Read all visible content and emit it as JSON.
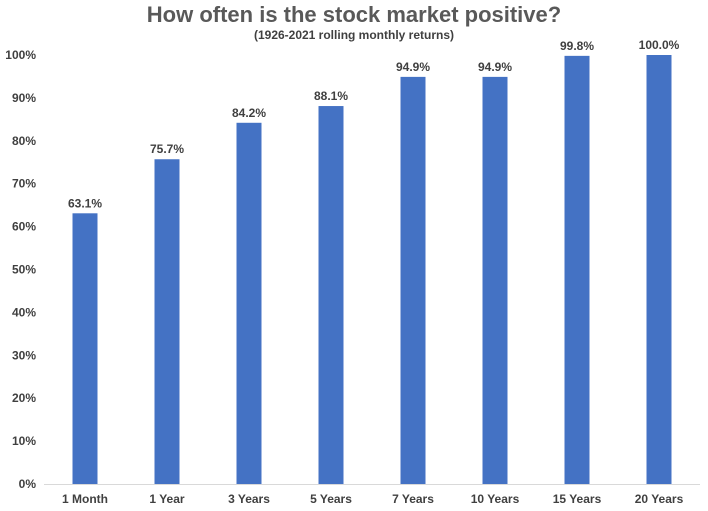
{
  "chart_data": {
    "type": "bar",
    "title": "How often is the stock market positive?",
    "subtitle": "(1926-2021 rolling monthly returns)",
    "xlabel": "",
    "ylabel": "",
    "ylim": [
      0,
      100
    ],
    "yticks": [
      "0%",
      "10%",
      "20%",
      "30%",
      "40%",
      "50%",
      "60%",
      "70%",
      "80%",
      "90%",
      "100%"
    ],
    "categories": [
      "1 Month",
      "1 Year",
      "3 Years",
      "5 Years",
      "7 Years",
      "10 Years",
      "15 Years",
      "20 Years"
    ],
    "values": [
      63.1,
      75.7,
      84.2,
      88.1,
      94.9,
      94.9,
      99.8,
      100.0
    ],
    "data_labels": [
      "63.1%",
      "75.7%",
      "84.2%",
      "88.1%",
      "94.9%",
      "94.9%",
      "99.8%",
      "100.0%"
    ],
    "grid": false,
    "legend": "none",
    "bar_color": "#4472C4",
    "axis_color": "#D9D9D9",
    "text_color": "#404040"
  }
}
